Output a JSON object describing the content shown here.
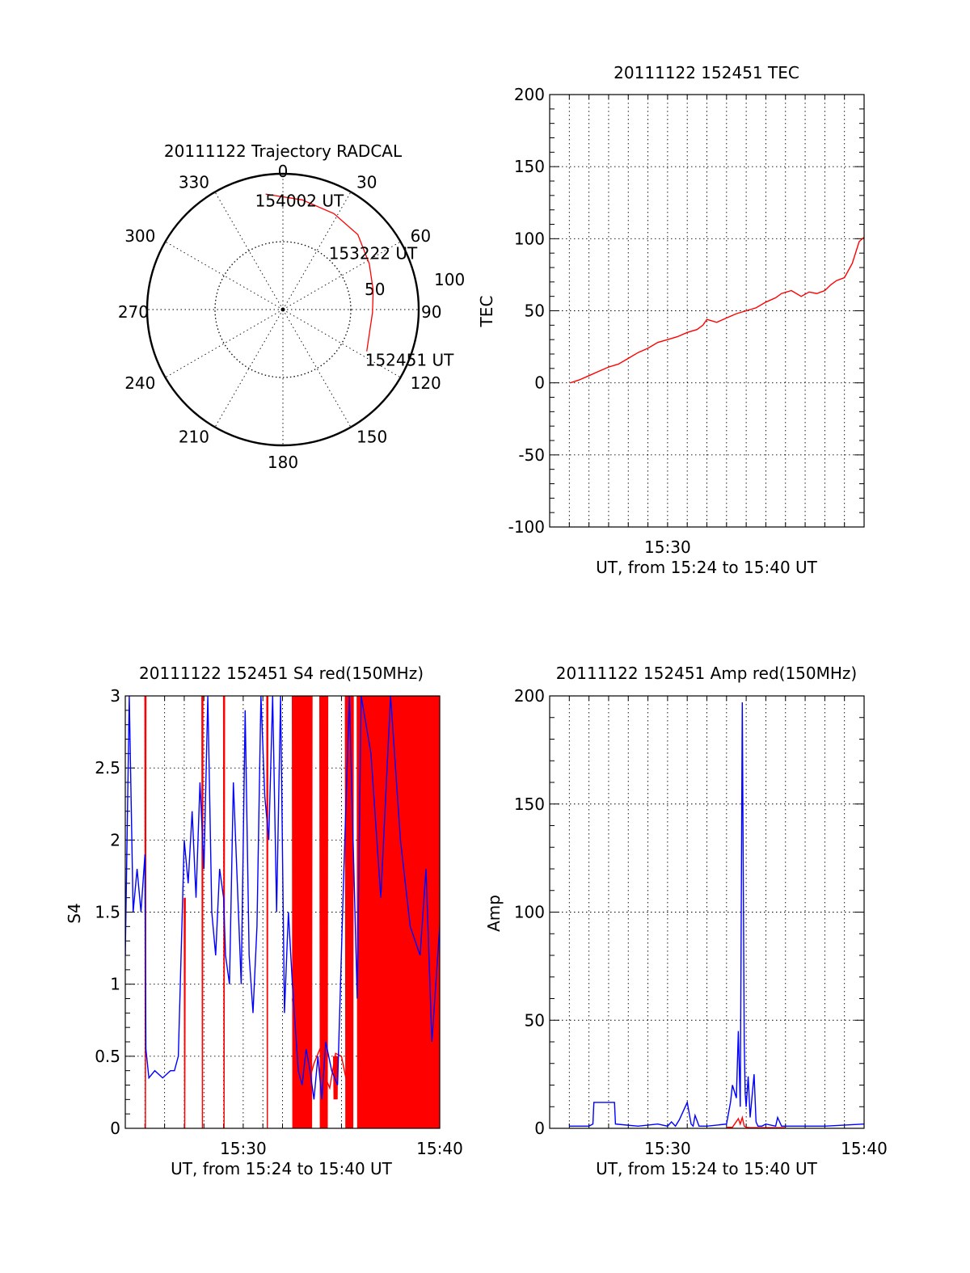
{
  "colors": {
    "red": "#ff0000",
    "blue": "#0000ff",
    "text": "#000000"
  },
  "chart_data": [
    {
      "type": "polar",
      "title": "20111122 Trajectory RADCAL",
      "angle_labels": [
        "0",
        "30",
        "60",
        "90",
        "120",
        "150",
        "180",
        "210",
        "240",
        "270",
        "300",
        "330"
      ],
      "radial_labels": [
        "50",
        "100"
      ],
      "rlim": [
        0,
        100
      ],
      "radial_rings": [
        50
      ],
      "trajectory": {
        "color": "red",
        "points": [
          {
            "az": 351.5,
            "r": 86
          },
          {
            "az": 10,
            "r": 82
          },
          {
            "az": 28,
            "r": 80
          },
          {
            "az": 45,
            "r": 78
          },
          {
            "az": 62,
            "r": 72
          },
          {
            "az": 78,
            "r": 68
          },
          {
            "az": 92,
            "r": 66
          },
          {
            "az": 105,
            "r": 66
          },
          {
            "az": 116.5,
            "r": 69
          }
        ]
      },
      "annotations": [
        {
          "text": "154002 UT",
          "az": 353.5,
          "r": 86
        },
        {
          "text": "153222 UT",
          "az": 69,
          "r": 54
        },
        {
          "text": "152451 UT",
          "az": 116.5,
          "r": 69
        }
      ]
    },
    {
      "type": "line",
      "title": "20111122 152451 TEC",
      "xlabel": "UT, from 15:24 to 15:40 UT",
      "ylabel": "TEC",
      "xlim_minutes": [
        0,
        16
      ],
      "xticks": [
        {
          "t": 6,
          "label": "15:30"
        }
      ],
      "ylim": [
        -100,
        200
      ],
      "yticks": [
        -100,
        -50,
        0,
        50,
        100,
        150,
        200
      ],
      "series": [
        {
          "color": "red",
          "x": [
            1.05,
            1.5,
            2.0,
            2.5,
            3.0,
            3.5,
            4.0,
            4.5,
            5.0,
            5.5,
            6.0,
            6.5,
            7.0,
            7.5,
            7.8,
            8.0,
            8.5,
            9.0,
            9.5,
            10.0,
            10.5,
            11.0,
            11.5,
            11.8,
            12.3,
            12.8,
            13.2,
            13.6,
            14.0,
            14.3,
            14.6,
            15.0,
            15.4,
            15.75,
            16.0
          ],
          "y": [
            0,
            2,
            5,
            8,
            11,
            13,
            17,
            21,
            24,
            28,
            30,
            32,
            35,
            37,
            40,
            44,
            42,
            45,
            48,
            50,
            52,
            56,
            59,
            62,
            64,
            60,
            63,
            62,
            64,
            68,
            71,
            73,
            83,
            98,
            101
          ]
        }
      ]
    },
    {
      "type": "line",
      "title": "20111122 152451 S4 red(150MHz)",
      "xlabel": "UT, from 15:24 to 15:40 UT",
      "ylabel": "S4",
      "xlim_minutes": [
        0,
        16
      ],
      "xticks": [
        {
          "t": 6,
          "label": "15:30"
        },
        {
          "t": 16,
          "label": "15:40"
        }
      ],
      "ylim": [
        0,
        3
      ],
      "yticks": [
        0,
        0.5,
        1,
        1.5,
        2,
        2.5,
        3
      ],
      "ytick_labels": [
        "0",
        "0.5",
        "1",
        "1.5",
        "2",
        "2.5",
        "3"
      ],
      "series": [
        {
          "color": "red",
          "segments": [
            [
              1.0,
              1.05,
              3.0,
              0.0
            ],
            [
              3.0,
              3.05,
              1.6,
              0.0
            ],
            [
              3.9,
              3.95,
              3.0,
              0.0
            ],
            [
              5.0,
              5.05,
              3.0,
              0.0
            ],
            [
              7.2,
              7.25,
              3.0,
              0.0
            ],
            [
              8.5,
              9.5,
              3.0,
              0.0
            ],
            [
              9.9,
              10.3,
              3.0,
              0.0
            ],
            [
              10.6,
              10.8,
              0.5,
              0.2
            ],
            [
              11.2,
              11.6,
              3.0,
              0.0
            ],
            [
              11.8,
              16.0,
              3.0,
              0.0
            ]
          ],
          "x": [
            8.5,
            8.9,
            9.3,
            9.6,
            9.9,
            10.1,
            10.4,
            10.7,
            11.0,
            11.3
          ],
          "y": [
            0.9,
            0.35,
            0.3,
            0.45,
            0.55,
            0.38,
            0.28,
            0.52,
            0.5,
            0.3
          ]
        },
        {
          "color": "blue",
          "x": [
            0.0,
            0.2,
            0.4,
            0.6,
            0.8,
            1.0,
            1.05,
            1.2,
            1.5,
            1.9,
            2.3,
            2.5,
            2.7,
            2.9,
            3.0,
            3.2,
            3.4,
            3.6,
            3.8,
            4.0,
            4.2,
            4.4,
            4.6,
            4.8,
            5.0,
            5.1,
            5.3,
            5.5,
            5.7,
            5.9,
            6.1,
            6.3,
            6.5,
            6.7,
            6.9,
            7.1,
            7.3,
            7.5,
            7.7,
            7.9,
            8.1,
            8.3,
            8.5,
            8.8,
            9.0,
            9.2,
            9.4,
            9.6,
            9.8,
            10.0,
            10.2,
            10.5,
            10.8,
            11.1,
            11.4,
            11.8,
            12.0,
            12.5,
            13.0,
            13.5,
            14.0,
            14.5,
            15.0,
            15.3,
            15.6,
            16.0
          ],
          "y": [
            1.2,
            3.0,
            1.5,
            1.8,
            1.5,
            1.9,
            0.55,
            0.35,
            0.4,
            0.35,
            0.4,
            0.4,
            0.5,
            1.5,
            2.0,
            1.7,
            2.2,
            1.6,
            2.4,
            1.8,
            3.0,
            1.5,
            1.2,
            1.8,
            1.6,
            1.2,
            1.0,
            2.4,
            1.7,
            1.0,
            2.9,
            1.2,
            0.8,
            1.4,
            3.0,
            2.3,
            2.0,
            3.0,
            1.5,
            3.0,
            0.8,
            1.5,
            1.0,
            0.4,
            0.3,
            0.55,
            0.4,
            0.2,
            0.5,
            0.2,
            0.6,
            0.4,
            0.3,
            1.7,
            3.0,
            0.9,
            3.0,
            2.6,
            1.6,
            3.0,
            2.0,
            1.4,
            1.2,
            1.8,
            0.6,
            1.4
          ]
        }
      ]
    },
    {
      "type": "line",
      "title": "20111122 152451 Amp red(150MHz)",
      "xlabel": "UT, from 15:24 to 15:40 UT",
      "ylabel": "Amp",
      "xlim_minutes": [
        0,
        16
      ],
      "xticks": [
        {
          "t": 6,
          "label": "15:30"
        },
        {
          "t": 16,
          "label": "15:40"
        }
      ],
      "ylim": [
        0,
        200
      ],
      "yticks": [
        0,
        50,
        100,
        150,
        200
      ],
      "series": [
        {
          "color": "blue",
          "x": [
            1.0,
            2.0,
            2.2,
            2.25,
            3.3,
            3.35,
            4.5,
            5.5,
            6.0,
            6.2,
            6.4,
            6.6,
            7.0,
            7.2,
            7.3,
            7.4,
            7.6,
            8.0,
            9.0,
            9.2,
            9.3,
            9.5,
            9.6,
            9.7,
            9.8,
            9.9,
            9.95,
            10.0,
            10.1,
            10.2,
            10.4,
            10.5,
            10.55,
            10.6,
            10.8,
            11.0,
            11.5,
            11.6,
            11.8,
            12.5,
            14.0,
            16.0
          ],
          "y": [
            1,
            1,
            2,
            12,
            12,
            2,
            1,
            2,
            1,
            3,
            1,
            4,
            12,
            2,
            1,
            6,
            1,
            1,
            2,
            12,
            20,
            14,
            45,
            10,
            197,
            40,
            16,
            10,
            24,
            5,
            25,
            3,
            2,
            1,
            1,
            2,
            1,
            5,
            1,
            1,
            1,
            2
          ]
        },
        {
          "color": "red",
          "x": [
            9.0,
            9.3,
            9.45,
            9.6,
            9.7,
            9.8,
            9.9,
            10.0,
            10.2,
            12.0
          ],
          "y": [
            0.5,
            0.5,
            2.5,
            4.5,
            2,
            5,
            1,
            0.5,
            0.3,
            0.3
          ]
        }
      ]
    }
  ]
}
